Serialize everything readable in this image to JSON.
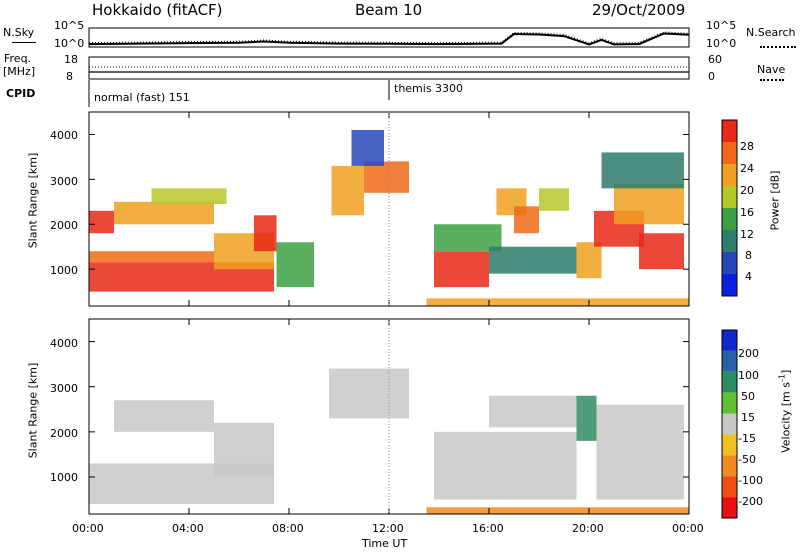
{
  "header": {
    "station": "Hokkaido (fitACF)",
    "beam": "Beam 10",
    "date": "29/Oct/2009"
  },
  "status_rows": {
    "nsky_label": "N.Sky",
    "nsky_ticks": [
      "10^5",
      "10^0"
    ],
    "nsearch_label": "N.Search",
    "nsearch_ticks": [
      "10^5",
      "10^0"
    ],
    "freq_label_1": "Freq.",
    "freq_label_2": "[MHz]",
    "freq_ticks": [
      "18",
      "8"
    ],
    "nave_label": "Nave",
    "nave_ticks": [
      "60",
      "0"
    ],
    "cpid_label": "CPID",
    "cpid_modes": [
      {
        "label": "normal (fast) 151",
        "start_hour": 0
      },
      {
        "label": "themis 3300",
        "start_hour": 12
      }
    ]
  },
  "time_axis": {
    "label": "Time UT",
    "ticks": [
      "00:00",
      "04:00",
      "08:00",
      "12:00",
      "16:00",
      "20:00",
      "00:00"
    ],
    "tick_hours": [
      0,
      4,
      8,
      12,
      16,
      20,
      24
    ]
  },
  "range_axis": {
    "label": "Slant Range [km]",
    "ticks": [
      "1000",
      "2000",
      "3000",
      "4000"
    ],
    "tick_values": [
      1000,
      2000,
      3000,
      4000
    ],
    "ylim": [
      180,
      4500
    ]
  },
  "colorbars": {
    "power": {
      "label": "Power [dB]",
      "ticks": [
        "4",
        "8",
        "12",
        "16",
        "20",
        "24",
        "28"
      ],
      "colors": [
        "#0a1fe0",
        "#2848b8",
        "#2e7c6c",
        "#3da044",
        "#b6c828",
        "#f0a020",
        "#f06818",
        "#e82818"
      ]
    },
    "velocity": {
      "label_main": "Velocity [m s",
      "label_sup": "-1",
      "label_end": "]",
      "ticks": [
        "200",
        "100",
        "50",
        "15",
        "-15",
        "-50",
        "-100",
        "-200"
      ],
      "colors": [
        "#1028c8",
        "#2860a8",
        "#2e8c62",
        "#60c030",
        "#c8c8c8",
        "#f0c020",
        "#f08c20",
        "#f05018",
        "#e81010"
      ]
    }
  },
  "chart_data": [
    {
      "type": "heatmap",
      "panel": "power",
      "xlabel": "Time UT",
      "ylabel": "Slant Range [km]",
      "xlim": [
        0,
        24
      ],
      "ylim": [
        180,
        4500
      ],
      "colorbar_label": "Power [dB]",
      "colorbar_range": [
        0,
        30
      ],
      "regions": [
        {
          "x": [
            0.0,
            7.4
          ],
          "y": [
            500,
            1150
          ],
          "value": 28
        },
        {
          "x": [
            0.0,
            5.0
          ],
          "y": [
            1150,
            1400
          ],
          "value": 26
        },
        {
          "x": [
            5.0,
            7.4
          ],
          "y": [
            1000,
            1800
          ],
          "value": 20
        },
        {
          "x": [
            6.6,
            7.5
          ],
          "y": [
            1400,
            2200
          ],
          "value": 27
        },
        {
          "x": [
            0.0,
            1.0
          ],
          "y": [
            1800,
            2300
          ],
          "value": 27
        },
        {
          "x": [
            1.0,
            5.0
          ],
          "y": [
            2000,
            2500
          ],
          "value": 20
        },
        {
          "x": [
            2.5,
            5.5
          ],
          "y": [
            2450,
            2800
          ],
          "value": 18
        },
        {
          "x": [
            7.5,
            9.0
          ],
          "y": [
            600,
            1600
          ],
          "value": 12
        },
        {
          "x": [
            9.7,
            11.0
          ],
          "y": [
            2200,
            3300
          ],
          "value": 22
        },
        {
          "x": [
            11.0,
            12.8
          ],
          "y": [
            2700,
            3400
          ],
          "value": 26
        },
        {
          "x": [
            10.5,
            11.8
          ],
          "y": [
            3300,
            4100
          ],
          "value": 6
        },
        {
          "x": [
            13.8,
            16.0
          ],
          "y": [
            600,
            1400
          ],
          "value": 28
        },
        {
          "x": [
            13.8,
            16.5
          ],
          "y": [
            1400,
            2000
          ],
          "value": 14
        },
        {
          "x": [
            16.3,
            17.5
          ],
          "y": [
            2200,
            2800
          ],
          "value": 21
        },
        {
          "x": [
            17.0,
            18.0
          ],
          "y": [
            1800,
            2400
          ],
          "value": 26
        },
        {
          "x": [
            18.0,
            19.2
          ],
          "y": [
            2300,
            2800
          ],
          "value": 18
        },
        {
          "x": [
            16.0,
            19.5
          ],
          "y": [
            900,
            1500
          ],
          "value": 11
        },
        {
          "x": [
            19.5,
            20.5
          ],
          "y": [
            800,
            1600
          ],
          "value": 22
        },
        {
          "x": [
            20.2,
            22.2
          ],
          "y": [
            1500,
            2300
          ],
          "value": 27
        },
        {
          "x": [
            21.0,
            23.8
          ],
          "y": [
            2000,
            2900
          ],
          "value": 22
        },
        {
          "x": [
            22.0,
            23.8
          ],
          "y": [
            1000,
            1800
          ],
          "value": 28
        },
        {
          "x": [
            20.5,
            23.8
          ],
          "y": [
            2800,
            3600
          ],
          "value": 8
        },
        {
          "x": [
            13.5,
            24.0
          ],
          "y": [
            180,
            350
          ],
          "value": 22
        }
      ]
    },
    {
      "type": "heatmap",
      "panel": "velocity",
      "xlabel": "Time UT",
      "ylabel": "Slant Range [km]",
      "xlim": [
        0,
        24
      ],
      "ylim": [
        180,
        4500
      ],
      "colorbar_label": "Velocity [m s-1]",
      "colorbar_range": [
        -200,
        200
      ],
      "regions": [
        {
          "x": [
            0.0,
            7.4
          ],
          "y": [
            400,
            1300
          ],
          "value": 0
        },
        {
          "x": [
            5.0,
            7.4
          ],
          "y": [
            1000,
            2200
          ],
          "value": 0
        },
        {
          "x": [
            1.0,
            5.0
          ],
          "y": [
            2000,
            2700
          ],
          "value": 0
        },
        {
          "x": [
            9.6,
            12.8
          ],
          "y": [
            2300,
            3400
          ],
          "value": 0
        },
        {
          "x": [
            13.8,
            19.5
          ],
          "y": [
            500,
            2000
          ],
          "value": 0
        },
        {
          "x": [
            16.0,
            19.5
          ],
          "y": [
            2100,
            2800
          ],
          "value": 0
        },
        {
          "x": [
            19.5,
            20.3
          ],
          "y": [
            1800,
            2800
          ],
          "value": 60
        },
        {
          "x": [
            20.3,
            23.8
          ],
          "y": [
            500,
            2600
          ],
          "value": 0
        },
        {
          "x": [
            13.5,
            24.0
          ],
          "y": [
            180,
            330
          ],
          "value": -60
        }
      ]
    },
    {
      "type": "line",
      "panel": "noise",
      "series": [
        {
          "name": "N.Sky",
          "x": [
            0,
            2,
            4,
            6,
            7,
            8,
            10,
            12,
            14,
            16.5,
            17.0,
            18,
            19,
            20,
            20.5,
            21,
            22,
            23,
            24
          ],
          "y": [
            0.12,
            0.15,
            0.18,
            0.2,
            0.28,
            0.2,
            0.15,
            0.14,
            0.12,
            0.15,
            0.75,
            0.72,
            0.62,
            0.1,
            0.38,
            0.1,
            0.12,
            0.78,
            0.7
          ]
        }
      ]
    }
  ]
}
